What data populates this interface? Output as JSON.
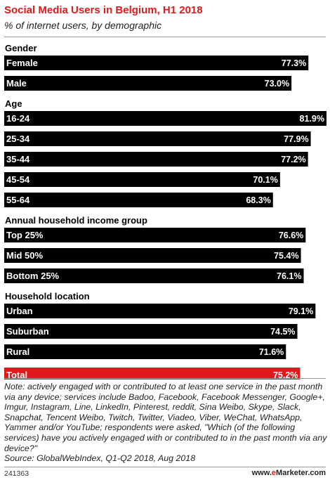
{
  "header": {
    "title": "Social Media Users in Belgium, H1 2018",
    "subtitle": "% of internet users, by demographic"
  },
  "footer": {
    "note": "Note: actively engaged with or contributed to at least one service in the past month via any device; services include Badoo, Facebook, Facebook Messenger, Google+, Imgur, Instagram, Line, LinkedIn, Pinterest, reddit, Sina Weibo, Skype, Slack, Snapchat, Tencent Weibo, Twitch, Twitter, Viadeo, Viber, WeChat, WhatsApp, Yammer and/or YouTube; respondents were asked, \"Which (of the following services) have you actively engaged with or contributed to in the past month via any device?\"",
    "source": "Source: GlobalWebIndex, Q1-Q2 2018, Aug 2018",
    "chart_id": "241363",
    "brand_prefix": "www.",
    "brand_e": "e",
    "brand_name": "Marketer",
    "brand_suffix": ".com"
  },
  "colors": {
    "bar": "#000000",
    "highlight_bar": "#e0191c",
    "title": "#e0191c"
  },
  "chart_data": {
    "type": "bar",
    "orientation": "horizontal",
    "title": "Social Media Users in Belgium, H1 2018",
    "subtitle": "% of internet users, by demographic",
    "value_suffix": "%",
    "xlim": [
      0,
      81.9
    ],
    "grid": false,
    "groups": [
      {
        "name": "Gender",
        "items": [
          {
            "label": "Female",
            "value": 77.3,
            "value_label": "77.3%"
          },
          {
            "label": "Male",
            "value": 73.0,
            "value_label": "73.0%"
          }
        ]
      },
      {
        "name": "Age",
        "items": [
          {
            "label": "16-24",
            "value": 81.9,
            "value_label": "81.9%"
          },
          {
            "label": "25-34",
            "value": 77.9,
            "value_label": "77.9%"
          },
          {
            "label": "35-44",
            "value": 77.2,
            "value_label": "77.2%"
          },
          {
            "label": "45-54",
            "value": 70.1,
            "value_label": "70.1%"
          },
          {
            "label": "55-64",
            "value": 68.3,
            "value_label": "68.3%"
          }
        ]
      },
      {
        "name": "Annual household income group",
        "items": [
          {
            "label": "Top 25%",
            "value": 76.6,
            "value_label": "76.6%"
          },
          {
            "label": "Mid 50%",
            "value": 75.4,
            "value_label": "75.4%"
          },
          {
            "label": "Bottom 25%",
            "value": 76.1,
            "value_label": "76.1%"
          }
        ]
      },
      {
        "name": "Household location",
        "items": [
          {
            "label": "Urban",
            "value": 79.1,
            "value_label": "79.1%"
          },
          {
            "label": "Suburban",
            "value": 74.5,
            "value_label": "74.5%"
          },
          {
            "label": "Rural",
            "value": 71.6,
            "value_label": "71.6%"
          }
        ]
      },
      {
        "name": "",
        "items": [
          {
            "label": "Total",
            "value": 75.2,
            "value_label": "75.2%",
            "highlight": true
          }
        ]
      }
    ]
  }
}
